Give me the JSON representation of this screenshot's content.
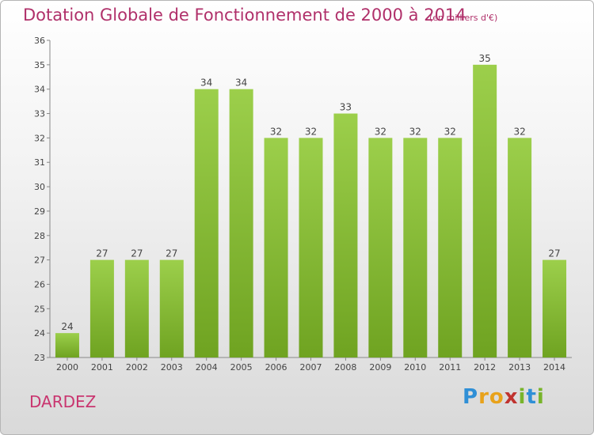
{
  "header": {
    "title": "Dotation Globale de Fonctionnement de 2000 à 2014",
    "units": "(en milliers d'€)"
  },
  "footer": {
    "place": "DARDEZ",
    "logo_letters": [
      "P",
      "r",
      "o",
      "x",
      "i",
      "t",
      "i"
    ],
    "logo_colors": [
      "#2f8fd6",
      "#e8a21b",
      "#e8a21b",
      "#c0332f",
      "#78b42b",
      "#2f8fd6",
      "#78b42b"
    ]
  },
  "chart_data": {
    "type": "bar",
    "categories": [
      "2000",
      "2001",
      "2002",
      "2003",
      "2004",
      "2005",
      "2006",
      "2007",
      "2008",
      "2009",
      "2010",
      "2011",
      "2012",
      "2013",
      "2014"
    ],
    "values": [
      24,
      27,
      27,
      27,
      34,
      34,
      32,
      32,
      33,
      32,
      32,
      32,
      35,
      32,
      27
    ],
    "ylim": [
      23,
      36
    ],
    "yticks": [
      23,
      24,
      25,
      26,
      27,
      28,
      29,
      30,
      31,
      32,
      33,
      34,
      35,
      36
    ],
    "grid": false,
    "bar_color_top": "#9ccf4b",
    "bar_color_bottom": "#6fa321"
  }
}
